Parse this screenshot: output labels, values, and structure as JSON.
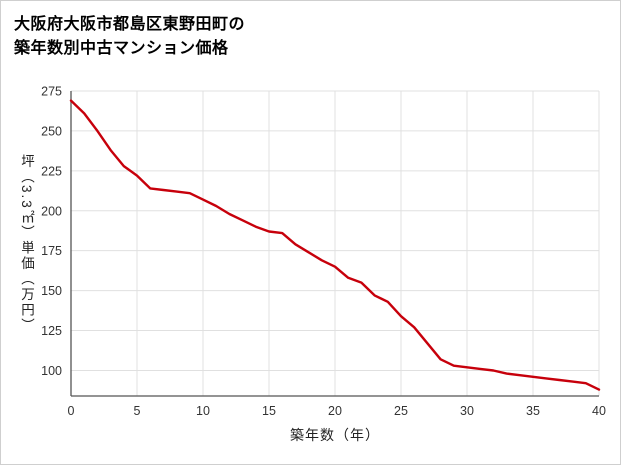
{
  "page": {
    "title_line1": "大阪府大阪市都島区東野田町の",
    "title_line2": "築年数別中古マンション価格"
  },
  "chart_data": {
    "type": "line",
    "title": "大阪府大阪市都島区東野田町の築年数別中古マンション価格",
    "xlabel": "築年数（年）",
    "ylabel": "坪（3.3㎡）単価（万円）",
    "x": [
      0,
      1,
      2,
      3,
      4,
      5,
      6,
      7,
      8,
      9,
      10,
      11,
      12,
      13,
      14,
      15,
      16,
      17,
      18,
      19,
      20,
      21,
      22,
      23,
      24,
      25,
      26,
      27,
      28,
      29,
      30,
      31,
      32,
      33,
      34,
      35,
      36,
      37,
      38,
      39,
      40
    ],
    "values": [
      269,
      261,
      250,
      238,
      228,
      222,
      214,
      213,
      212,
      211,
      207,
      203,
      198,
      194,
      190,
      187,
      186,
      179,
      174,
      169,
      165,
      158,
      155,
      147,
      143,
      134,
      127,
      117,
      107,
      103,
      102,
      101,
      100,
      98,
      97,
      96,
      95,
      94,
      93,
      92,
      88
    ],
    "xlim": [
      0,
      40
    ],
    "ylim": [
      84,
      275
    ],
    "xticks": [
      0,
      5,
      10,
      15,
      20,
      25,
      30,
      35,
      40
    ],
    "yticks": [
      100,
      125,
      150,
      175,
      200,
      225,
      250,
      275
    ],
    "grid": true,
    "legend_position": "none",
    "line_color": "#c7000b",
    "grid_color": "#e0e0e0",
    "axis_color": "#555555",
    "tick_label_color": "#333333"
  }
}
